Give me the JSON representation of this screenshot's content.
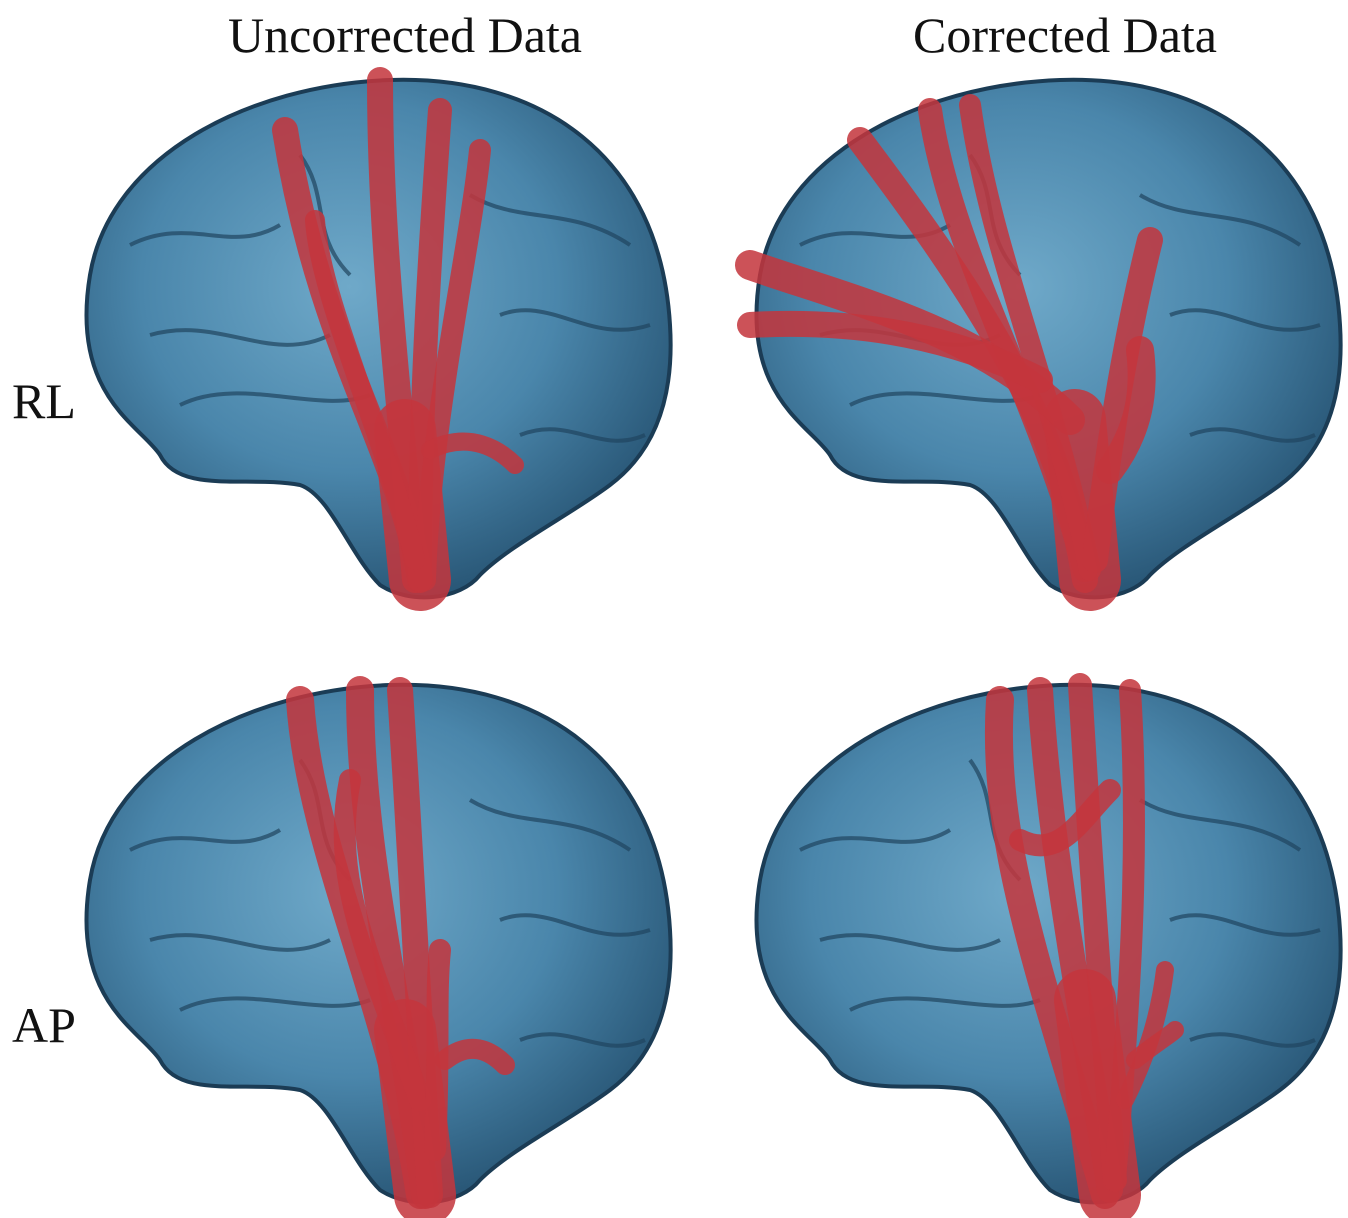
{
  "columns": [
    "Uncorrected Data",
    "Corrected Data"
  ],
  "rows": [
    "RL",
    "AP"
  ]
}
